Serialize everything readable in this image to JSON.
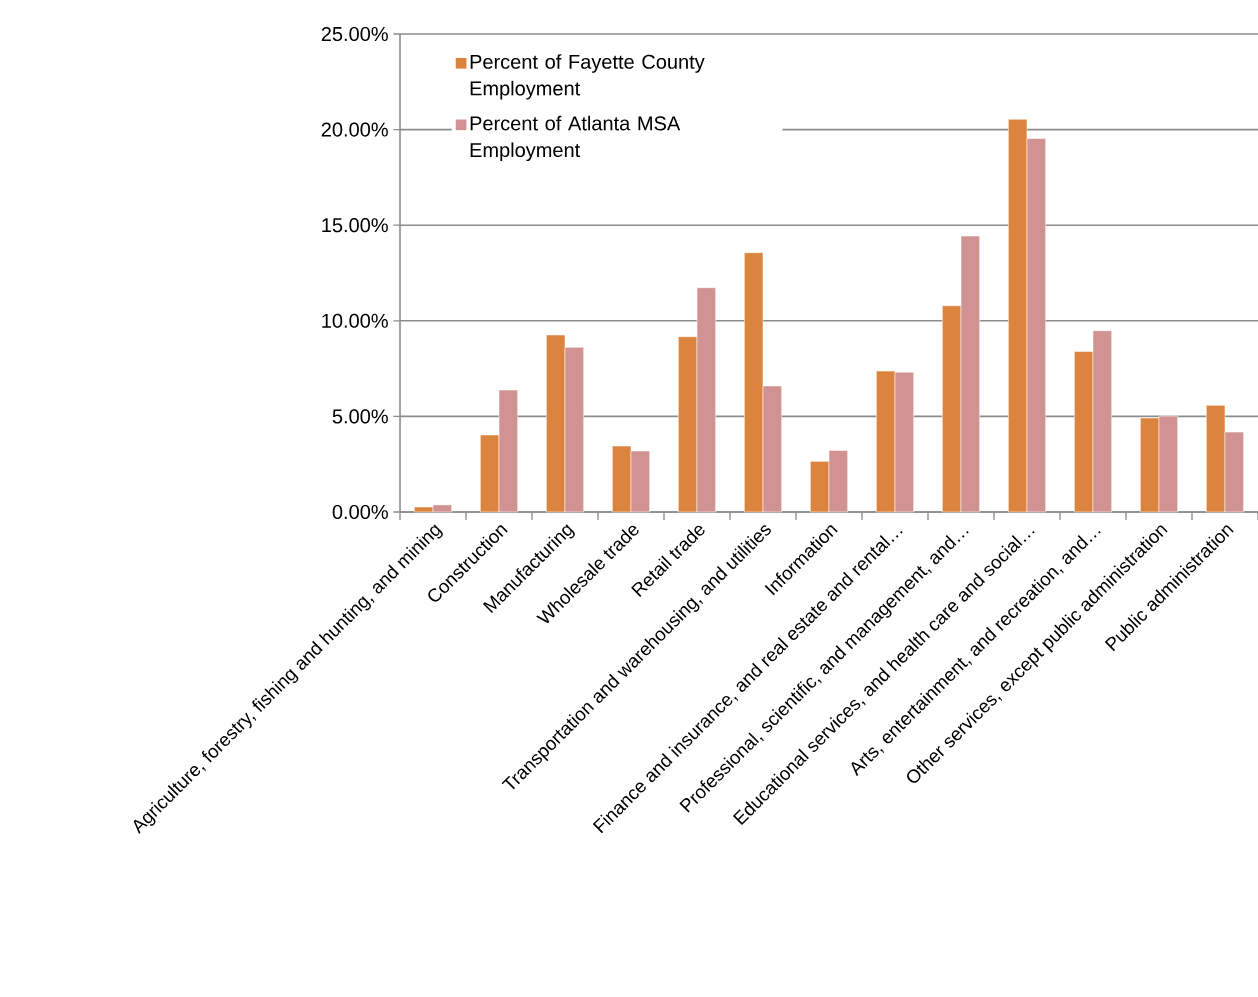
{
  "chart_data": {
    "type": "bar",
    "categories": [
      "Agriculture, forestry, fishing and hunting, and mining",
      "Construction",
      "Manufacturing",
      "Wholesale trade",
      "Retail trade",
      "Transportation and warehousing, and utilities",
      "Information",
      "Finance and insurance, and real estate and rental…",
      "Professional, scientific, and management, and…",
      "Educational services, and health care and social…",
      "Arts, entertainment, and recreation, and…",
      "Other services, except public administration",
      "Public administration"
    ],
    "series": [
      {
        "name": "Percent of Fayette County Employment",
        "color": "#db843d",
        "values": [
          0.26,
          4.03,
          9.26,
          3.45,
          9.17,
          13.56,
          2.65,
          7.37,
          10.79,
          20.54,
          8.39,
          4.92,
          5.58
        ]
      },
      {
        "name": "Percent of Atlanta MSA Employment",
        "color": "#d19292",
        "values": [
          0.37,
          6.38,
          8.61,
          3.19,
          11.73,
          6.59,
          3.22,
          7.31,
          14.43,
          19.53,
          9.48,
          5.02,
          4.18
        ]
      }
    ],
    "ylim": [
      0,
      25
    ],
    "yticks": [
      {
        "value": 0,
        "label": "0.00%"
      },
      {
        "value": 5,
        "label": "5.00%"
      },
      {
        "value": 10,
        "label": "10.00%"
      },
      {
        "value": 15,
        "label": "15.00%"
      },
      {
        "value": 20,
        "label": "20.00%"
      },
      {
        "value": 25,
        "label": "25.00%"
      }
    ],
    "grid": "y",
    "legend": "top left"
  }
}
